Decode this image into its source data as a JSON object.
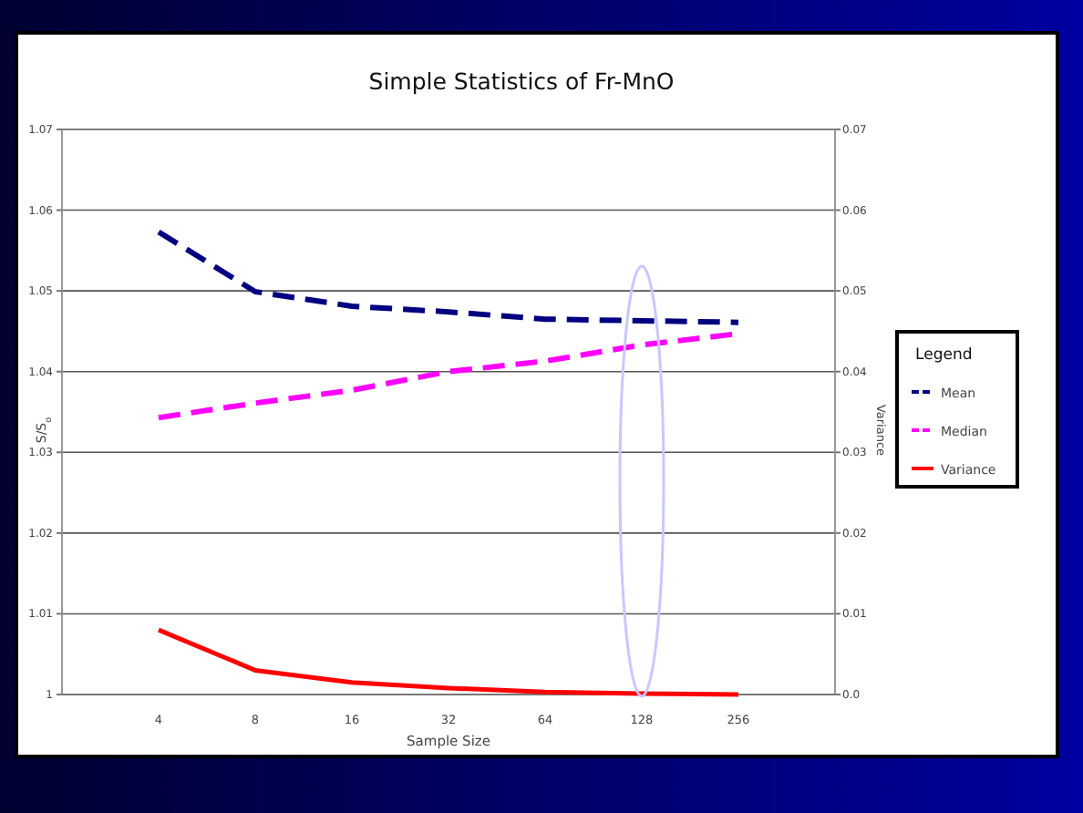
{
  "chart_data": {
    "type": "line",
    "title": "Simple Statistics of Fr-MnO",
    "xlabel": "Sample Size",
    "ylabel": "S/S$_{o}$",
    "y2label": "Variance",
    "legend_title": "Legend",
    "categories": [
      "4",
      "8",
      "16",
      "32",
      "64",
      "128",
      "256"
    ],
    "series": [
      {
        "name": "Mean",
        "color": "#000080",
        "line_style": "dashed",
        "values": [
          1.0573,
          1.0499,
          1.0481,
          1.0474,
          1.0465,
          1.0463,
          1.0461
        ]
      },
      {
        "name": "Median",
        "color": "#ff00ff",
        "line_style": "dashed",
        "values": [
          1.0343,
          1.0361,
          1.0377,
          1.04,
          1.0413,
          1.0433,
          1.0447
        ]
      },
      {
        "name": "Variance",
        "color": "#ff0000",
        "line_style": "solid",
        "axis": "y2",
        "values": [
          0.008,
          0.003,
          0.0015,
          0.0008,
          0.0003,
          0.0001,
          0.0
        ]
      }
    ],
    "ylim": [
      1,
      1.07
    ],
    "yticks": [
      1,
      1.01,
      1.02,
      1.03,
      1.04,
      1.05,
      1.06,
      1.07
    ],
    "y2lim": [
      0,
      0.07
    ],
    "y2ticks": [
      {
        "value": 0,
        "label": "0.0"
      },
      0.01,
      0.02,
      0.03,
      0.04,
      0.05,
      0.06,
      0.07
    ],
    "grid": "y",
    "legend": "right",
    "marker": "none"
  }
}
